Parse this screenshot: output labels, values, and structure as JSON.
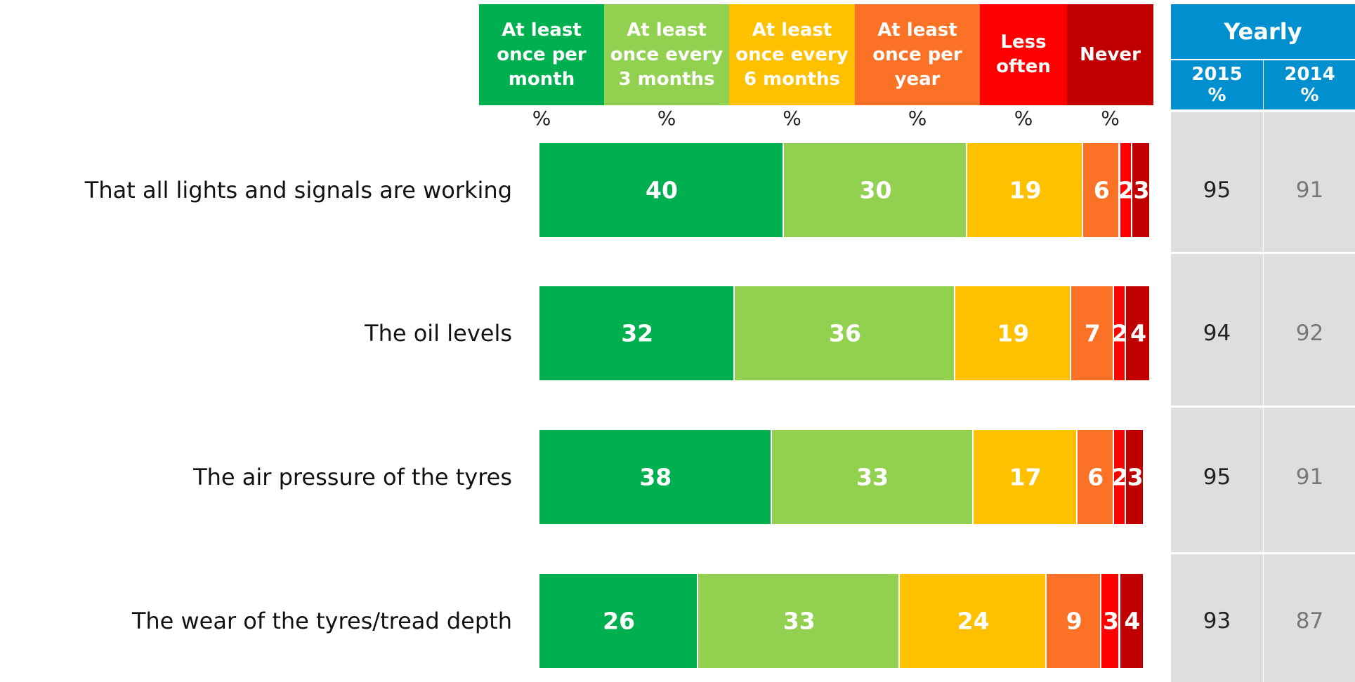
{
  "chart_data": {
    "type": "bar",
    "orientation": "horizontal",
    "stacked": true,
    "categories": [
      "That all lights and signals are working",
      "The oil levels",
      "The air pressure of the tyres",
      "The wear of the tyres/tread depth"
    ],
    "xlim": [
      0,
      100
    ],
    "series": [
      {
        "name": "At least once per month",
        "unit": "%",
        "color": "#00b050",
        "values": [
          40,
          32,
          38,
          26
        ]
      },
      {
        "name": "At least once every 3 months",
        "unit": "%",
        "color": "#92d050",
        "values": [
          30,
          36,
          33,
          33
        ]
      },
      {
        "name": "At least once every 6 months",
        "unit": "%",
        "color": "#ffc000",
        "values": [
          19,
          19,
          17,
          24
        ]
      },
      {
        "name": "At least once per year",
        "unit": "%",
        "color": "#fb7125",
        "values": [
          6,
          7,
          6,
          9
        ]
      },
      {
        "name": "Less often",
        "unit": "%",
        "color": "#ff0000",
        "values": [
          2,
          2,
          2,
          3
        ]
      },
      {
        "name": "Never",
        "unit": "%",
        "color": "#c00000",
        "values": [
          3,
          4,
          3,
          4
        ]
      }
    ]
  },
  "table": {
    "title": "Yearly",
    "columns": [
      {
        "year": "2015",
        "unit": "%",
        "color": "#222222"
      },
      {
        "year": "2014",
        "unit": "%",
        "color": "#777777"
      }
    ],
    "rows": [
      [
        95,
        91
      ],
      [
        94,
        92
      ],
      [
        95,
        91
      ],
      [
        93,
        87
      ]
    ]
  }
}
